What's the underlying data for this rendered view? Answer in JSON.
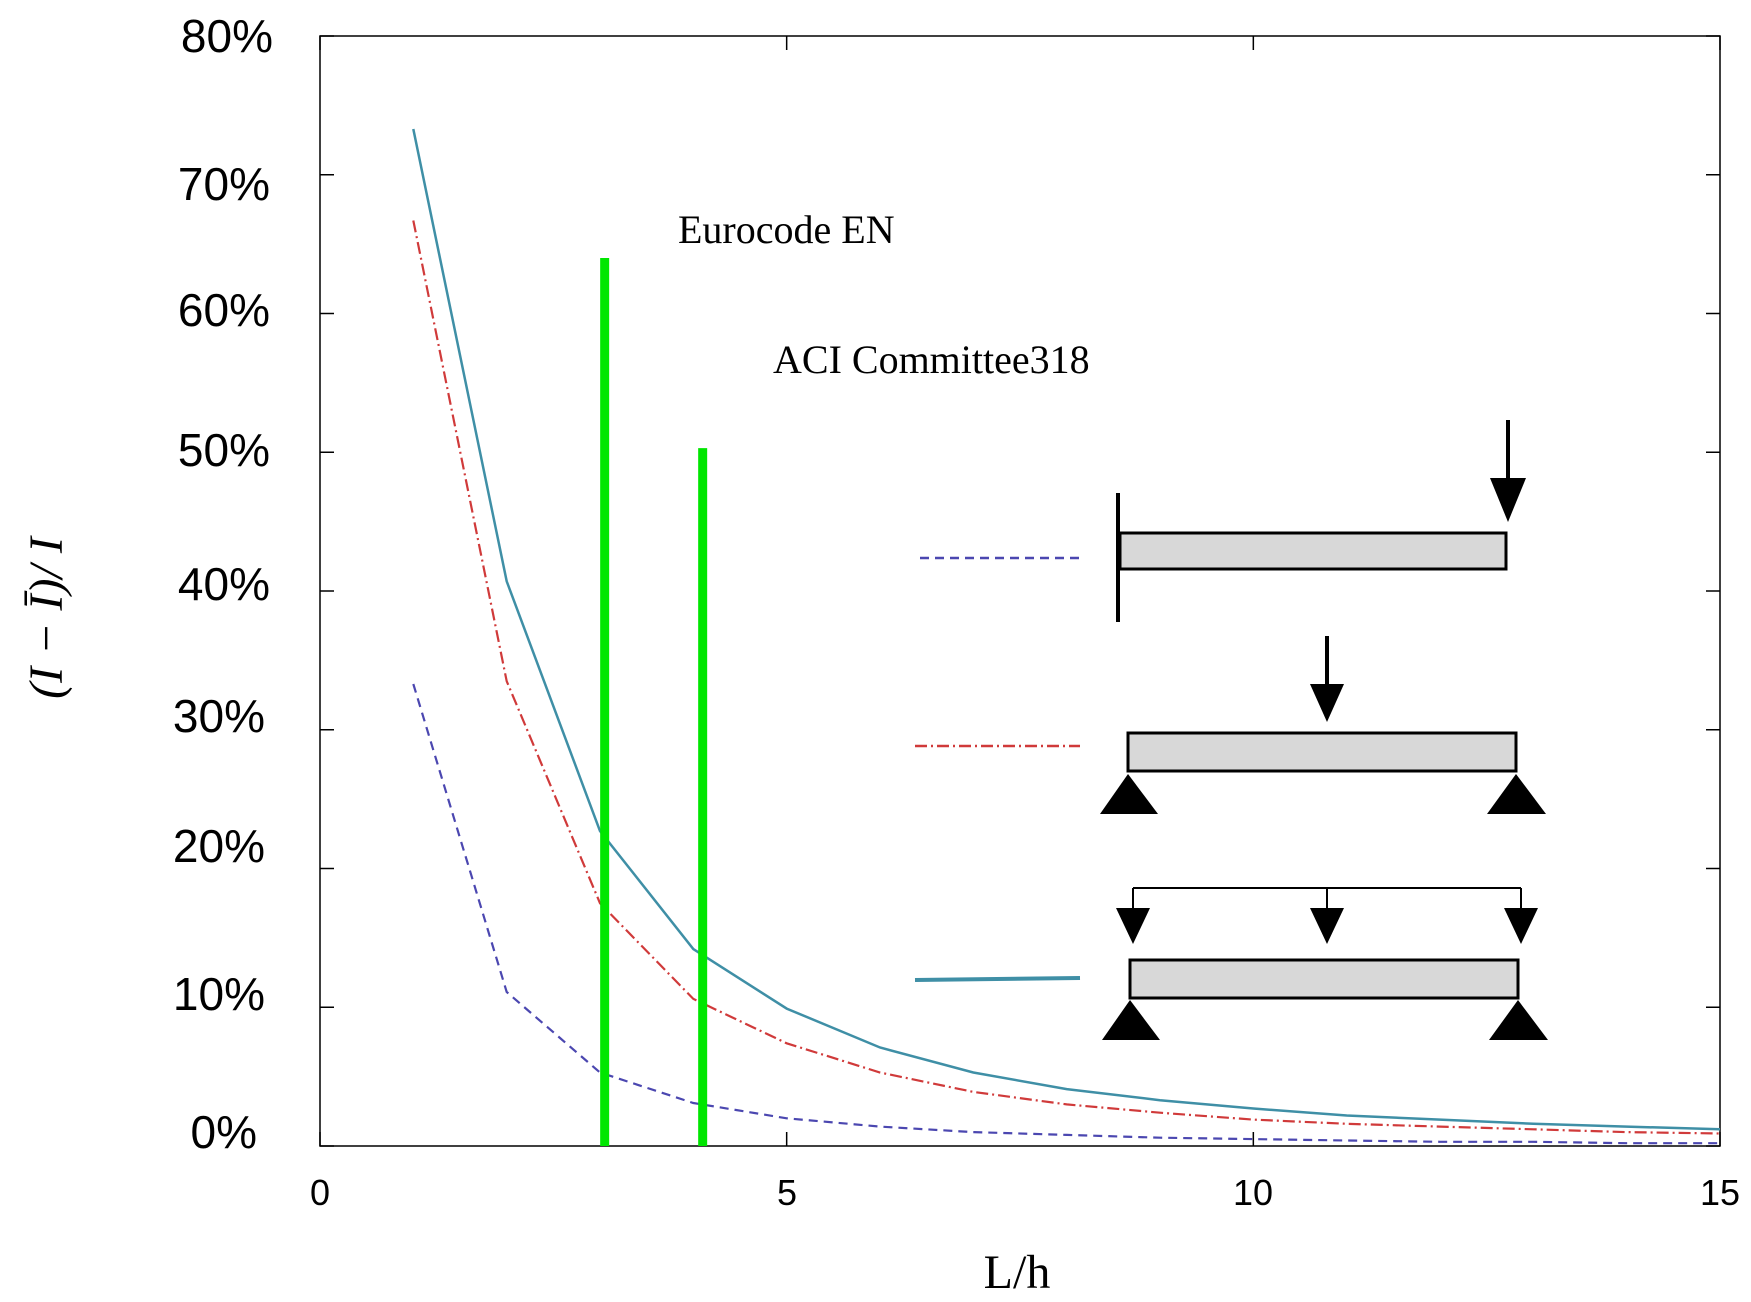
{
  "chart_data": {
    "type": "line",
    "title": "",
    "xlabel": "L/h",
    "ylabel": "(I − Ī)/ I",
    "xlim": [
      0,
      15
    ],
    "ylim": [
      0,
      80
    ],
    "x_ticks": [
      0,
      5,
      10,
      15
    ],
    "x_tick_labels": [
      "0",
      "5",
      "10",
      "15"
    ],
    "y_ticks": [
      0,
      10,
      20,
      30,
      40,
      50,
      60,
      70,
      80
    ],
    "y_tick_labels": [
      "0%",
      "10%",
      "20%",
      "30%",
      "40%",
      "50%",
      "60%",
      "70%",
      "80%"
    ],
    "grid": false,
    "x": [
      1,
      2,
      3,
      4,
      5,
      6,
      7,
      8,
      9,
      10,
      11,
      12,
      13,
      14,
      15
    ],
    "series": [
      {
        "name": "cantilever-point-load",
        "style": "dashed",
        "color": "#4b47b0",
        "values": [
          33.3,
          11.1,
          5.3,
          3.1,
          2.0,
          1.4,
          1.0,
          0.8,
          0.6,
          0.5,
          0.4,
          0.3,
          0.3,
          0.2,
          0.2
        ]
      },
      {
        "name": "simply-supported-midspan-load",
        "style": "dash-dot",
        "color": "#d03a3a",
        "values": [
          66.7,
          33.5,
          17.5,
          10.6,
          7.4,
          5.3,
          3.9,
          3.0,
          2.4,
          1.9,
          1.6,
          1.4,
          1.2,
          1.0,
          0.9
        ]
      },
      {
        "name": "simply-supported-distributed-load",
        "style": "solid",
        "color": "#3f8fa6",
        "values": [
          73.3,
          40.7,
          22.7,
          14.2,
          9.9,
          7.1,
          5.3,
          4.1,
          3.3,
          2.7,
          2.2,
          1.9,
          1.6,
          1.4,
          1.2
        ]
      }
    ],
    "vertical_lines": [
      {
        "name": "eurocode-line",
        "x": 3.05,
        "top": 64,
        "color": "#00e600"
      },
      {
        "name": "aci-line",
        "x": 4.1,
        "top": 50.3,
        "color": "#00e600"
      }
    ],
    "annotations": [
      {
        "name": "eurocode-label",
        "text": "Eurocode EN"
      },
      {
        "name": "aci-label",
        "text": "ACI Committee318"
      }
    ]
  }
}
